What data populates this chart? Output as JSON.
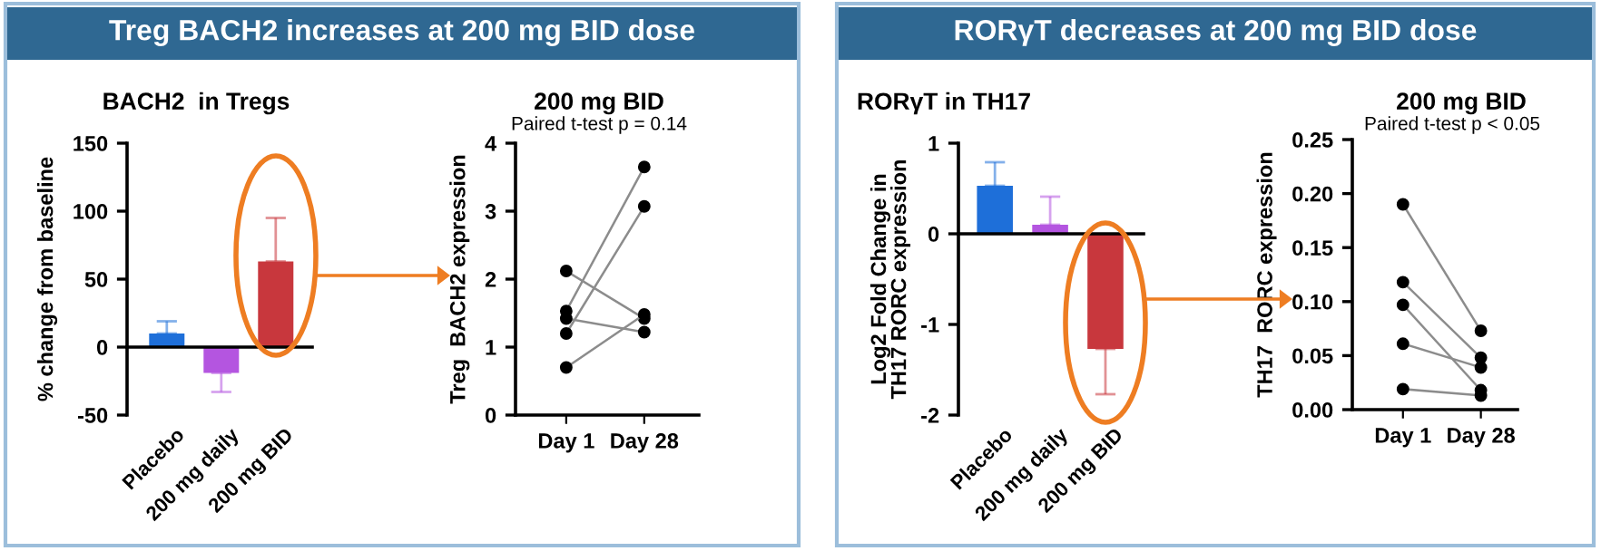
{
  "chart_data": [
    {
      "type": "bar",
      "title": "Treg BACH2 increases at 200 mg BID dose",
      "subtitle": "BACH2  in Tregs",
      "ylabel": "% change from baseline",
      "categories": [
        "Placebo",
        "200 mg daily",
        "200 mg BID"
      ],
      "values": [
        10,
        -19,
        63
      ],
      "colors": [
        "#1e6fd9",
        "#b455e0",
        "#c8373d"
      ],
      "errors": [
        [
          10,
          19
        ],
        [
          -33,
          -19
        ],
        [
          63,
          95
        ]
      ],
      "ylim": [
        -50,
        150
      ],
      "yticks": [
        -50,
        0,
        50,
        100,
        150
      ]
    },
    {
      "type": "line",
      "title": "200 mg BID",
      "subtitle": "Paired t-test p = 0.14",
      "ylabel": "Treg  BACH2 expression",
      "categories": [
        "Day 1",
        "Day 28"
      ],
      "marker": "circle",
      "line_style": "solid",
      "series": [
        {
          "color": "#8c8c8c",
          "values": [
            2.12,
            1.42
          ]
        },
        {
          "color": "#8c8c8c",
          "values": [
            1.53,
            3.65
          ]
        },
        {
          "color": "#8c8c8c",
          "values": [
            1.42,
            1.22
          ]
        },
        {
          "color": "#8c8c8c",
          "values": [
            1.2,
            3.07
          ]
        },
        {
          "color": "#8c8c8c",
          "values": [
            0.7,
            1.48
          ]
        }
      ],
      "ylim": [
        0,
        4
      ],
      "yticks": [
        0,
        1,
        2,
        3,
        4
      ]
    },
    {
      "type": "bar",
      "title": "RORγT decreases at 200 mg BID dose",
      "subtitle": "RORγT in TH17",
      "ylabel": "Log2 Fold Change in\nTH17 RORC expression",
      "categories": [
        "Placebo",
        "200 mg daily",
        "200 mg BID"
      ],
      "values": [
        0.53,
        0.1,
        -1.27
      ],
      "colors": [
        "#1e6fd9",
        "#b455e0",
        "#c8373d"
      ],
      "errors": [
        [
          0.53,
          0.79
        ],
        [
          0.1,
          0.41
        ],
        [
          -1.77,
          -1.27
        ]
      ],
      "ylim": [
        -2,
        1
      ],
      "yticks": [
        -2,
        -1,
        0,
        1
      ]
    },
    {
      "type": "line",
      "title": "200 mg BID",
      "subtitle": "Paired t-test p < 0.05",
      "ylabel": "TH17  RORC expression",
      "categories": [
        "Day 1",
        "Day 28"
      ],
      "marker": "circle",
      "line_style": "solid",
      "series": [
        {
          "color": "#8c8c8c",
          "values": [
            0.19,
            0.073
          ]
        },
        {
          "color": "#8c8c8c",
          "values": [
            0.118,
            0.048
          ]
        },
        {
          "color": "#8c8c8c",
          "values": [
            0.097,
            0.018
          ]
        },
        {
          "color": "#8c8c8c",
          "values": [
            0.061,
            0.039
          ]
        },
        {
          "color": "#8c8c8c",
          "values": [
            0.019,
            0.013
          ]
        }
      ],
      "ylim": [
        0,
        0.25
      ],
      "yticks": [
        {
          "value": 0,
          "label": "0.00"
        },
        {
          "value": 0.05,
          "label": "0.05"
        },
        {
          "value": 0.1,
          "label": "0.10"
        },
        {
          "value": 0.15,
          "label": "0.15"
        },
        {
          "value": 0.2,
          "label": "0.20"
        },
        {
          "value": 0.25,
          "label": "0.25"
        }
      ]
    }
  ]
}
